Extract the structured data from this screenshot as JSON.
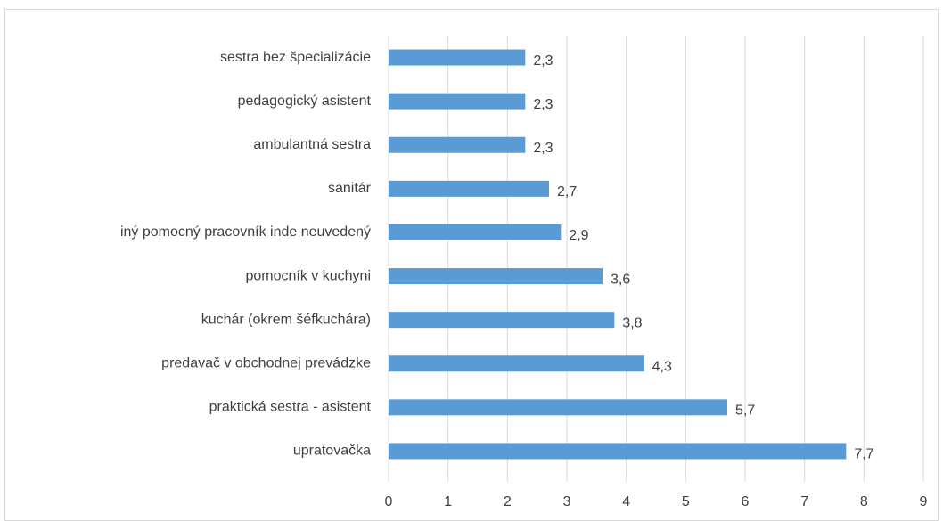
{
  "chart_data": {
    "type": "bar",
    "orientation": "horizontal",
    "categories": [
      "sestra bez špecializácie",
      "pedagogický asistent",
      "ambulantná sestra",
      "sanitár",
      "iný pomocný pracovník inde neuvedený",
      "pomocník v kuchyni",
      "kuchár (okrem šéfkuchára)",
      "predavač v obchodnej prevádzke",
      "praktická sestra - asistent",
      "upratovačka"
    ],
    "values": [
      2.3,
      2.3,
      2.3,
      2.7,
      2.9,
      3.6,
      3.8,
      4.3,
      5.7,
      7.7
    ],
    "value_labels": [
      "2,3",
      "2,3",
      "2,3",
      "2,7",
      "2,9",
      "3,6",
      "3,8",
      "4,3",
      "5,7",
      "7,7"
    ],
    "color": "#5b9bd5",
    "xlim": [
      0,
      9
    ],
    "xticks": [
      0,
      1,
      2,
      3,
      4,
      5,
      6,
      7,
      8,
      9
    ],
    "grid": true
  }
}
